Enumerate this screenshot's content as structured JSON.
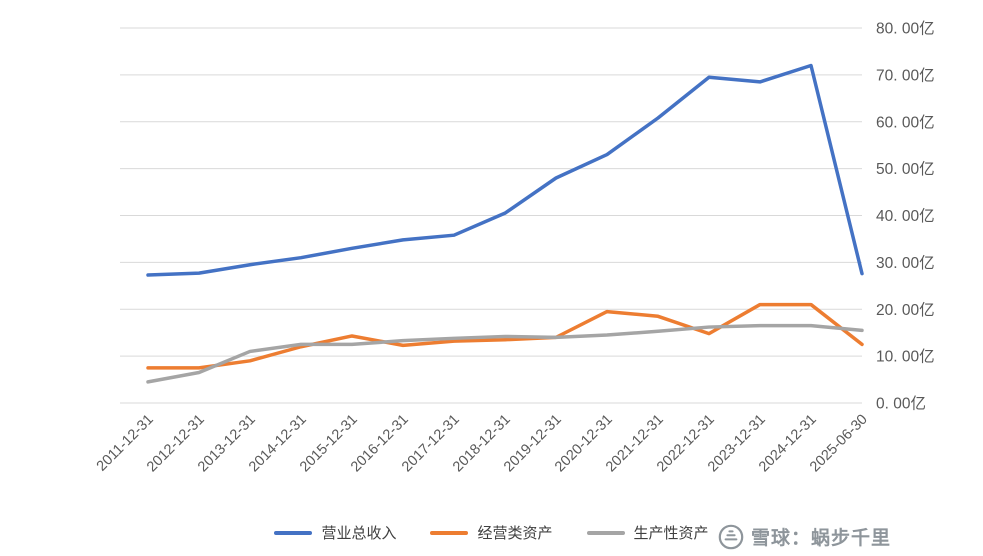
{
  "chart_data": {
    "type": "line",
    "categories": [
      "2011-12-31",
      "2012-12-31",
      "2013-12-31",
      "2014-12-31",
      "2015-12-31",
      "2016-12-31",
      "2017-12-31",
      "2018-12-31",
      "2019-12-31",
      "2020-12-31",
      "2021-12-31",
      "2022-12-31",
      "2023-12-31",
      "2024-12-31",
      "2025-06-30"
    ],
    "series": [
      {
        "name": "营业总收入",
        "color": "#4472C4",
        "values": [
          27.3,
          27.7,
          29.5,
          31.0,
          33.0,
          34.8,
          35.8,
          40.5,
          48.0,
          53.0,
          60.8,
          69.5,
          68.5,
          72.0,
          27.6
        ]
      },
      {
        "name": "经营类资产",
        "color": "#ED7D31",
        "values": [
          7.5,
          7.5,
          9.0,
          12.0,
          14.3,
          12.3,
          13.2,
          13.5,
          14.0,
          19.5,
          18.5,
          14.8,
          21.0,
          21.0,
          12.5
        ]
      },
      {
        "name": "生产性资产",
        "color": "#A5A5A5",
        "values": [
          4.5,
          6.5,
          11.0,
          12.5,
          12.5,
          13.3,
          13.8,
          14.2,
          14.0,
          14.5,
          15.3,
          16.2,
          16.5,
          16.5,
          15.5
        ]
      }
    ],
    "title": "",
    "xlabel": "",
    "ylabel": "",
    "ylim": [
      0,
      80
    ],
    "yticks": {
      "values": [
        0,
        10,
        20,
        30,
        40,
        50,
        60,
        70,
        80
      ],
      "labels": [
        "0. 00亿",
        "10. 00亿",
        "20. 00亿",
        "30. 00亿",
        "40. 00亿",
        "50. 00亿",
        "60. 00亿",
        "70. 00亿",
        "80. 00亿"
      ]
    },
    "grid": true,
    "grid_color": "#D9D9D9",
    "axis_text_color": "#595959",
    "legend_position": "bottom"
  },
  "watermark": {
    "text": "雪球：蜗步千里"
  }
}
